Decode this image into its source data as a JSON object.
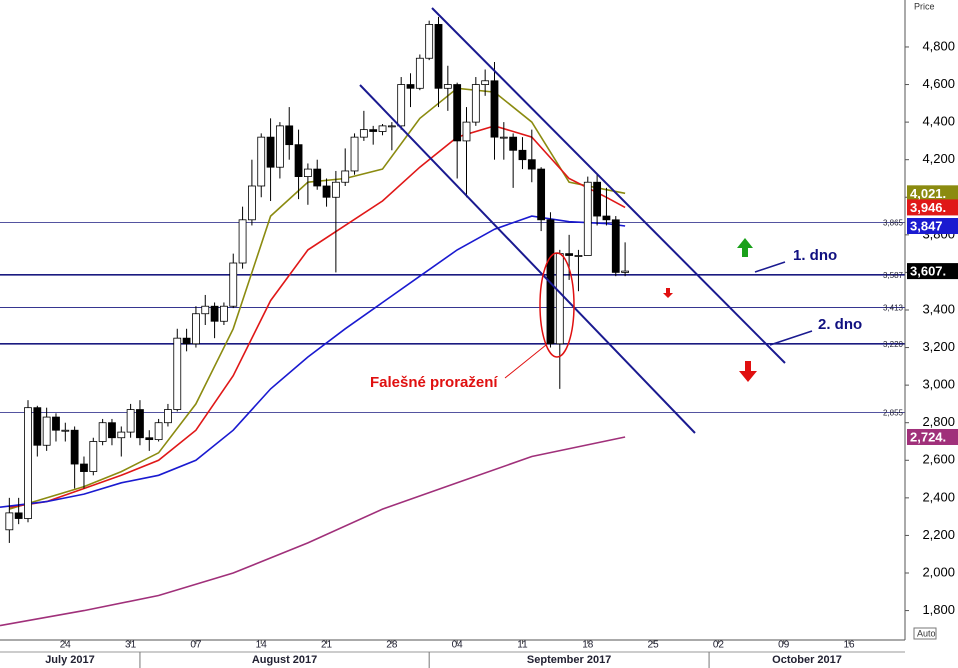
{
  "chart_data": {
    "type": "candlestick",
    "y_axis_label": "Price",
    "auto_label": "Auto",
    "xlim": [
      "2017-07-17",
      "2017-10-22"
    ],
    "ylim": [
      1670,
      5050
    ],
    "yticks": [
      {
        "value": 1800,
        "label": "1,800"
      },
      {
        "value": 2000,
        "label": "2,000"
      },
      {
        "value": 2200,
        "label": "2,200"
      },
      {
        "value": 2400,
        "label": "2,400"
      },
      {
        "value": 2600,
        "label": "2,600"
      },
      {
        "value": 2800,
        "label": "2,800"
      },
      {
        "value": 3000,
        "label": "3,000"
      },
      {
        "value": 3200,
        "label": "3,200"
      },
      {
        "value": 3400,
        "label": "3,400"
      },
      {
        "value": 3600,
        "label": "3,600"
      },
      {
        "value": 3800,
        "label": "3,800"
      },
      {
        "value": 4000,
        "label": "4,000"
      },
      {
        "value": 4200,
        "label": "4,200"
      },
      {
        "value": 4400,
        "label": "4,400"
      },
      {
        "value": 4600,
        "label": "4,600"
      },
      {
        "value": 4800,
        "label": "4,800"
      }
    ],
    "xticks": [
      {
        "value": "2017-07-24",
        "label": "24"
      },
      {
        "value": "2017-07-31",
        "label": "31"
      },
      {
        "value": "2017-08-07",
        "label": "07"
      },
      {
        "value": "2017-08-14",
        "label": "14"
      },
      {
        "value": "2017-08-21",
        "label": "21"
      },
      {
        "value": "2017-08-28",
        "label": "28"
      },
      {
        "value": "2017-09-04",
        "label": "04"
      },
      {
        "value": "2017-09-11",
        "label": "11"
      },
      {
        "value": "2017-09-18",
        "label": "18"
      },
      {
        "value": "2017-09-25",
        "label": "25"
      },
      {
        "value": "2017-10-02",
        "label": "02"
      },
      {
        "value": "2017-10-09",
        "label": "09"
      },
      {
        "value": "2017-10-16",
        "label": "16"
      }
    ],
    "months": [
      {
        "start": "2017-07-01",
        "end": "2017-08-01",
        "label": "July 2017"
      },
      {
        "start": "2017-08-01",
        "end": "2017-09-01",
        "label": "August 2017"
      },
      {
        "start": "2017-09-01",
        "end": "2017-10-01",
        "label": "September 2017"
      },
      {
        "start": "2017-10-01",
        "end": "2017-11-01",
        "label": "October 2017"
      }
    ],
    "x": [
      "2017-07-18",
      "2017-07-19",
      "2017-07-20",
      "2017-07-21",
      "2017-07-22",
      "2017-07-23",
      "2017-07-24",
      "2017-07-25",
      "2017-07-26",
      "2017-07-27",
      "2017-07-28",
      "2017-07-29",
      "2017-07-30",
      "2017-07-31",
      "2017-08-01",
      "2017-08-02",
      "2017-08-03",
      "2017-08-04",
      "2017-08-05",
      "2017-08-06",
      "2017-08-07",
      "2017-08-08",
      "2017-08-09",
      "2017-08-10",
      "2017-08-11",
      "2017-08-12",
      "2017-08-13",
      "2017-08-14",
      "2017-08-15",
      "2017-08-16",
      "2017-08-17",
      "2017-08-18",
      "2017-08-19",
      "2017-08-20",
      "2017-08-21",
      "2017-08-22",
      "2017-08-23",
      "2017-08-24",
      "2017-08-25",
      "2017-08-26",
      "2017-08-27",
      "2017-08-28",
      "2017-08-29",
      "2017-08-30",
      "2017-08-31",
      "2017-09-01",
      "2017-09-02",
      "2017-09-03",
      "2017-09-04",
      "2017-09-05",
      "2017-09-06",
      "2017-09-07",
      "2017-09-08",
      "2017-09-09",
      "2017-09-10",
      "2017-09-11",
      "2017-09-12",
      "2017-09-13",
      "2017-09-14",
      "2017-09-15",
      "2017-09-16",
      "2017-09-17",
      "2017-09-18",
      "2017-09-19",
      "2017-09-20",
      "2017-09-21",
      "2017-09-22"
    ],
    "open": [
      2230,
      2320,
      2290,
      2880,
      2680,
      2830,
      2760,
      2760,
      2580,
      2540,
      2700,
      2800,
      2720,
      2750,
      2870,
      2720,
      2710,
      2800,
      2870,
      3250,
      3220,
      3380,
      3420,
      3340,
      3420,
      3650,
      3880,
      4060,
      4320,
      4160,
      4380,
      4280,
      4110,
      4150,
      4060,
      4000,
      4080,
      4140,
      4320,
      4360,
      4350,
      4380,
      4380,
      4600,
      4580,
      4740,
      4920,
      4580,
      4600,
      4300,
      4400,
      4600,
      4620,
      4320,
      4320,
      4250,
      4200,
      4150,
      3880,
      3220,
      3700,
      3690,
      3690,
      4080,
      3900,
      3880,
      3600
    ],
    "high": [
      2400,
      2400,
      2920,
      2890,
      2880,
      2850,
      2800,
      2780,
      2620,
      2720,
      2820,
      2820,
      2780,
      2900,
      2920,
      2760,
      2820,
      2900,
      3300,
      3300,
      3420,
      3480,
      3440,
      3440,
      3700,
      3950,
      4200,
      4340,
      4420,
      4400,
      4480,
      4360,
      4180,
      4200,
      4100,
      4140,
      4260,
      4340,
      4460,
      4380,
      4390,
      4400,
      4640,
      4660,
      4760,
      4940,
      4960,
      4700,
      4610,
      4480,
      4640,
      4680,
      4720,
      4400,
      4340,
      4320,
      4360,
      4160,
      3920,
      3720,
      3800,
      3720,
      4110,
      4120,
      4050,
      3900,
      3760
    ],
    "low": [
      2160,
      2260,
      2270,
      2620,
      2650,
      2700,
      2700,
      2450,
      2450,
      2520,
      2680,
      2680,
      2620,
      2720,
      2680,
      2650,
      2700,
      2780,
      2860,
      3180,
      3200,
      3320,
      3250,
      3320,
      3410,
      3620,
      3850,
      4000,
      3980,
      4100,
      4200,
      3990,
      3960,
      4040,
      3950,
      3600,
      4060,
      4120,
      4300,
      4280,
      4330,
      4250,
      4360,
      4480,
      4570,
      4730,
      4480,
      4460,
      4100,
      4000,
      4380,
      4540,
      4200,
      4200,
      4050,
      4150,
      4080,
      3820,
      3200,
      2980,
      3560,
      3500,
      3690,
      3850,
      3850,
      3580,
      3580
    ],
    "close": [
      2320,
      2290,
      2880,
      2680,
      2830,
      2760,
      2760,
      2580,
      2540,
      2700,
      2800,
      2720,
      2750,
      2870,
      2720,
      2710,
      2800,
      2870,
      3250,
      3220,
      3380,
      3420,
      3340,
      3420,
      3650,
      3880,
      4060,
      4320,
      4160,
      4380,
      4280,
      4110,
      4150,
      4060,
      4000,
      4080,
      4140,
      4320,
      4360,
      4350,
      4380,
      4380,
      4600,
      4580,
      4740,
      4920,
      4580,
      4600,
      4300,
      4400,
      4600,
      4620,
      4320,
      4320,
      4250,
      4200,
      4150,
      3880,
      3220,
      3700,
      3690,
      3690,
      4080,
      3900,
      3880,
      3600,
      3607
    ],
    "close_tag": "3,607.",
    "series": [
      {
        "color": "#8b8b10",
        "tag": "4,021.",
        "x": [
          "2017-07-18",
          "2017-07-22",
          "2017-07-26",
          "2017-07-30",
          "2017-08-03",
          "2017-08-07",
          "2017-08-11",
          "2017-08-15",
          "2017-08-19",
          "2017-08-23",
          "2017-08-27",
          "2017-08-31",
          "2017-09-04",
          "2017-09-08",
          "2017-09-12",
          "2017-09-16",
          "2017-09-20",
          "2017-09-22"
        ],
        "values": [
          2340,
          2400,
          2460,
          2540,
          2640,
          2900,
          3300,
          3900,
          4080,
          4100,
          4150,
          4420,
          4580,
          4560,
          4400,
          4080,
          4040,
          4021
        ]
      },
      {
        "color": "#e01818",
        "tag": "3,946.",
        "x": [
          "2017-07-18",
          "2017-07-22",
          "2017-07-26",
          "2017-07-30",
          "2017-08-03",
          "2017-08-07",
          "2017-08-11",
          "2017-08-15",
          "2017-08-19",
          "2017-08-23",
          "2017-08-27",
          "2017-08-31",
          "2017-09-04",
          "2017-09-08",
          "2017-09-12",
          "2017-09-16",
          "2017-09-20",
          "2017-09-22"
        ],
        "values": [
          2350,
          2380,
          2450,
          2520,
          2600,
          2760,
          3050,
          3450,
          3720,
          3850,
          3980,
          4160,
          4320,
          4380,
          4320,
          4100,
          4000,
          3946
        ]
      },
      {
        "color": "#1a1ad0",
        "tag": "3,847",
        "x": [
          "2017-07-17",
          "2017-07-22",
          "2017-07-26",
          "2017-07-30",
          "2017-08-03",
          "2017-08-07",
          "2017-08-11",
          "2017-08-15",
          "2017-08-19",
          "2017-08-23",
          "2017-08-27",
          "2017-08-31",
          "2017-09-04",
          "2017-09-08",
          "2017-09-12",
          "2017-09-16",
          "2017-09-20",
          "2017-09-22"
        ],
        "values": [
          2350,
          2380,
          2420,
          2480,
          2520,
          2600,
          2760,
          2980,
          3150,
          3300,
          3440,
          3580,
          3720,
          3830,
          3900,
          3870,
          3860,
          3847
        ]
      },
      {
        "color": "#a0307a",
        "tag": "2,724.",
        "x": [
          "2017-07-17",
          "2017-07-26",
          "2017-08-03",
          "2017-08-11",
          "2017-08-19",
          "2017-08-27",
          "2017-09-04",
          "2017-09-12",
          "2017-09-22"
        ],
        "values": [
          1720,
          1800,
          1880,
          2000,
          2160,
          2340,
          2480,
          2620,
          2724
        ]
      }
    ],
    "levels": [
      {
        "value": 3865,
        "label": "3,865",
        "bold": false
      },
      {
        "value": 3587,
        "label": "3,587",
        "bold": true
      },
      {
        "value": 3413,
        "label": "3,413",
        "bold": false
      },
      {
        "value": 3220,
        "label": "3,220",
        "bold": true
      },
      {
        "value": 2855,
        "label": "2,855",
        "bold": false
      }
    ],
    "annotations": [
      "1. dno",
      "2. dno",
      "Falešné proražení"
    ]
  }
}
